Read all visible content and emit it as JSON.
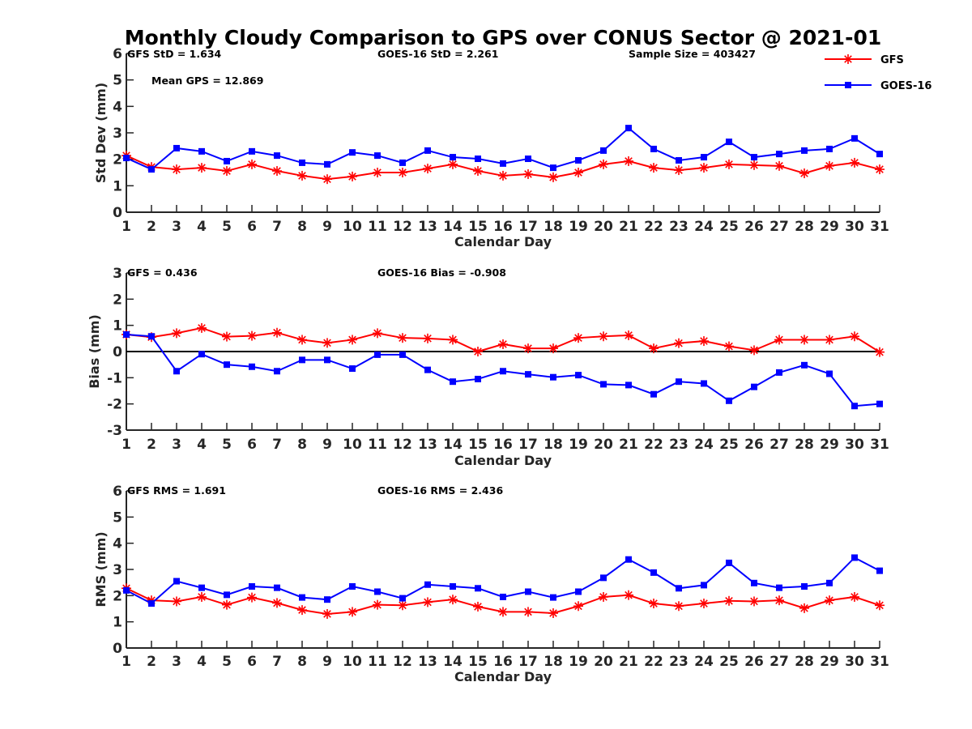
{
  "title": "Monthly Cloudy Comparison to GPS over CONUS Sector @ 2021-01",
  "legend": {
    "placement": "top-right",
    "entries": [
      {
        "name": "GFS",
        "color": "#ff0000",
        "marker": "asterisk"
      },
      {
        "name": "GOES-16",
        "color": "#0000ff",
        "marker": "square"
      }
    ]
  },
  "chart_data": [
    {
      "type": "line",
      "id": "std",
      "ylabel": "Std Dev (mm)",
      "xlabel": "Calendar Day",
      "ylim": [
        0,
        6
      ],
      "yticks": [
        "0",
        "1",
        "2",
        "3",
        "4",
        "5",
        "6"
      ],
      "xlim": [
        1,
        31
      ],
      "x": [
        1,
        2,
        3,
        4,
        5,
        6,
        7,
        8,
        9,
        10,
        11,
        12,
        13,
        14,
        15,
        16,
        17,
        18,
        19,
        20,
        21,
        22,
        23,
        24,
        25,
        26,
        27,
        28,
        29,
        30,
        31
      ],
      "annotations": [
        "GFS StD = 1.634",
        "GOES-16 StD = 2.261",
        "Sample Size = 403427",
        "Mean GPS = 12.869"
      ],
      "zero_line": false,
      "series": [
        {
          "name": "GFS",
          "values": [
            2.14,
            1.71,
            1.62,
            1.68,
            1.56,
            1.81,
            1.56,
            1.38,
            1.25,
            1.35,
            1.5,
            1.5,
            1.65,
            1.81,
            1.56,
            1.38,
            1.44,
            1.32,
            1.5,
            1.81,
            1.93,
            1.68,
            1.59,
            1.68,
            1.81,
            1.78,
            1.75,
            1.47,
            1.75,
            1.87,
            1.62
          ]
        },
        {
          "name": "GOES-16",
          "values": [
            2.05,
            1.62,
            2.42,
            2.3,
            1.93,
            2.3,
            2.14,
            1.87,
            1.81,
            2.26,
            2.14,
            1.87,
            2.33,
            2.08,
            2.02,
            1.84,
            2.02,
            1.68,
            1.96,
            2.33,
            3.18,
            2.39,
            1.96,
            2.08,
            2.66,
            2.08,
            2.2,
            2.33,
            2.39,
            2.79,
            2.2
          ]
        }
      ]
    },
    {
      "type": "line",
      "id": "bias",
      "ylabel": "Bias (mm)",
      "xlabel": "Calendar Day",
      "ylim": [
        -3,
        3
      ],
      "yticks": [
        "-3",
        "-2",
        "-1",
        "0",
        "1",
        "2",
        "3"
      ],
      "xlim": [
        1,
        31
      ],
      "x": [
        1,
        2,
        3,
        4,
        5,
        6,
        7,
        8,
        9,
        10,
        11,
        12,
        13,
        14,
        15,
        16,
        17,
        18,
        19,
        20,
        21,
        22,
        23,
        24,
        25,
        26,
        27,
        28,
        29,
        30,
        31
      ],
      "annotations": [
        "GFS = 0.436",
        "GOES-16 Bias = -0.908"
      ],
      "zero_line": true,
      "series": [
        {
          "name": "GFS",
          "values": [
            0.65,
            0.55,
            0.7,
            0.9,
            0.57,
            0.6,
            0.72,
            0.45,
            0.33,
            0.45,
            0.7,
            0.52,
            0.5,
            0.45,
            0.0,
            0.28,
            0.12,
            0.12,
            0.52,
            0.58,
            0.62,
            0.12,
            0.32,
            0.4,
            0.2,
            0.05,
            0.45,
            0.45,
            0.45,
            0.58,
            -0.02
          ]
        },
        {
          "name": "GOES-16",
          "values": [
            0.65,
            0.58,
            -0.75,
            -0.1,
            -0.5,
            -0.58,
            -0.75,
            -0.32,
            -0.32,
            -0.65,
            -0.12,
            -0.12,
            -0.7,
            -1.15,
            -1.05,
            -0.75,
            -0.87,
            -0.98,
            -0.9,
            -1.25,
            -1.28,
            -1.63,
            -1.15,
            -1.22,
            -1.88,
            -1.35,
            -0.8,
            -0.52,
            -0.85,
            -2.08,
            -2.0
          ]
        }
      ]
    },
    {
      "type": "line",
      "id": "rms",
      "ylabel": "RMS (mm)",
      "xlabel": "Calendar Day",
      "ylim": [
        0,
        6
      ],
      "yticks": [
        "0",
        "1",
        "2",
        "3",
        "4",
        "5",
        "6"
      ],
      "xlim": [
        1,
        31
      ],
      "x": [
        1,
        2,
        3,
        4,
        5,
        6,
        7,
        8,
        9,
        10,
        11,
        12,
        13,
        14,
        15,
        16,
        17,
        18,
        19,
        20,
        21,
        22,
        23,
        24,
        25,
        26,
        27,
        28,
        29,
        30,
        31
      ],
      "annotations": [
        "GFS RMS = 1.691",
        "GOES-16 RMS = 2.436"
      ],
      "zero_line": false,
      "series": [
        {
          "name": "GFS",
          "values": [
            2.28,
            1.82,
            1.78,
            1.95,
            1.65,
            1.93,
            1.72,
            1.45,
            1.3,
            1.38,
            1.65,
            1.63,
            1.75,
            1.85,
            1.58,
            1.38,
            1.38,
            1.33,
            1.6,
            1.95,
            2.02,
            1.7,
            1.6,
            1.7,
            1.8,
            1.78,
            1.82,
            1.52,
            1.82,
            1.95,
            1.63
          ]
        },
        {
          "name": "GOES-16",
          "values": [
            2.2,
            1.7,
            2.55,
            2.3,
            2.03,
            2.35,
            2.3,
            1.93,
            1.85,
            2.35,
            2.15,
            1.9,
            2.42,
            2.35,
            2.28,
            1.95,
            2.15,
            1.93,
            2.15,
            2.68,
            3.38,
            2.88,
            2.28,
            2.4,
            3.25,
            2.48,
            2.3,
            2.35,
            2.48,
            3.45,
            2.95
          ]
        }
      ]
    }
  ]
}
